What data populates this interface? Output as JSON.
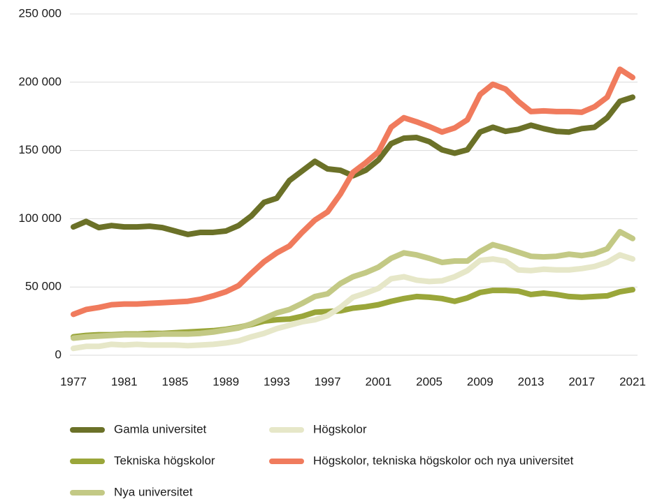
{
  "chart_data": {
    "type": "line",
    "x": [
      1977,
      1978,
      1979,
      1980,
      1981,
      1982,
      1983,
      1984,
      1985,
      1986,
      1987,
      1988,
      1989,
      1990,
      1991,
      1992,
      1993,
      1994,
      1995,
      1996,
      1997,
      1998,
      1999,
      2000,
      2001,
      2002,
      2003,
      2004,
      2005,
      2006,
      2007,
      2008,
      2009,
      2010,
      2011,
      2012,
      2013,
      2014,
      2015,
      2016,
      2017,
      2018,
      2019,
      2020,
      2021
    ],
    "xlim": [
      1977,
      2021
    ],
    "xticks": [
      1977,
      1981,
      1985,
      1989,
      1993,
      1997,
      2001,
      2005,
      2009,
      2013,
      2017,
      2021
    ],
    "ylim": [
      0,
      250000
    ],
    "yticks": [
      0,
      {
        "value": 50000,
        "label": "50 000"
      },
      {
        "value": 100000,
        "label": "100 000"
      },
      {
        "value": 150000,
        "label": "150 000"
      },
      {
        "value": 200000,
        "label": "200 000"
      },
      {
        "value": 250000,
        "label": "250 000"
      }
    ],
    "grid": true,
    "legend": "bottom",
    "series": [
      {
        "name": "Gamla universitet",
        "color": "#6b7128",
        "values": [
          94000,
          98000,
          93500,
          95000,
          94000,
          94000,
          94500,
          93500,
          91000,
          88500,
          90000,
          90000,
          91000,
          95000,
          102000,
          112000,
          115000,
          128000,
          135000,
          142000,
          136500,
          135500,
          131500,
          135500,
          143000,
          155000,
          159000,
          159500,
          156500,
          150500,
          148000,
          150500,
          163500,
          167000,
          164000,
          165500,
          168500,
          166000,
          164000,
          163500,
          166000,
          167000,
          174000,
          186000,
          189000
        ]
      },
      {
        "name": "Tekniska högskolor",
        "color": "#9aa63a",
        "values": [
          13500,
          14500,
          15000,
          15000,
          15500,
          15500,
          16000,
          16000,
          16500,
          17000,
          17500,
          18000,
          19000,
          20500,
          22500,
          25000,
          26000,
          26500,
          28500,
          31500,
          32000,
          32500,
          34500,
          35500,
          37000,
          39500,
          41500,
          43000,
          42500,
          41500,
          39500,
          42000,
          46000,
          47500,
          47500,
          47000,
          44500,
          45500,
          44500,
          43000,
          42500,
          43000,
          43500,
          46500,
          48000
        ]
      },
      {
        "name": "Nya universitet",
        "color": "#c3c985",
        "values": [
          12500,
          13500,
          14000,
          14500,
          15000,
          15000,
          15000,
          15500,
          15500,
          15500,
          16000,
          17000,
          18500,
          20000,
          23000,
          27000,
          31000,
          33500,
          38000,
          43000,
          45000,
          52500,
          57500,
          60500,
          64500,
          71000,
          75000,
          73500,
          71000,
          68000,
          69000,
          69000,
          76000,
          81000,
          78500,
          75500,
          72500,
          72000,
          72500,
          74000,
          73000,
          74500,
          78000,
          90500,
          85500
        ]
      },
      {
        "name": "Högskolor",
        "color": "#e6e7c8",
        "values": [
          5000,
          6500,
          6500,
          8000,
          7500,
          8000,
          7500,
          7500,
          7500,
          7000,
          7500,
          8000,
          9000,
          10500,
          13500,
          16000,
          19500,
          22000,
          24500,
          26000,
          29000,
          35000,
          42500,
          45500,
          49000,
          56000,
          57500,
          55000,
          54000,
          54500,
          57500,
          62000,
          69500,
          70500,
          69000,
          62500,
          62000,
          63000,
          62500,
          62500,
          63500,
          65000,
          68000,
          73500,
          70500
        ]
      },
      {
        "name": "Högskolor, tekniska högskolor och nya universitet",
        "color": "#f07b5d",
        "values": [
          30000,
          33500,
          35000,
          37000,
          37500,
          37500,
          38000,
          38500,
          39000,
          39500,
          41000,
          43500,
          46500,
          51000,
          60000,
          68500,
          75000,
          80000,
          90000,
          99000,
          105000,
          118000,
          134000,
          141000,
          149000,
          167000,
          174000,
          171000,
          167500,
          163500,
          166500,
          172500,
          191000,
          198500,
          195000,
          186000,
          178500,
          179000,
          178500,
          178500,
          178000,
          182000,
          189000,
          209500,
          203500
        ]
      }
    ]
  }
}
